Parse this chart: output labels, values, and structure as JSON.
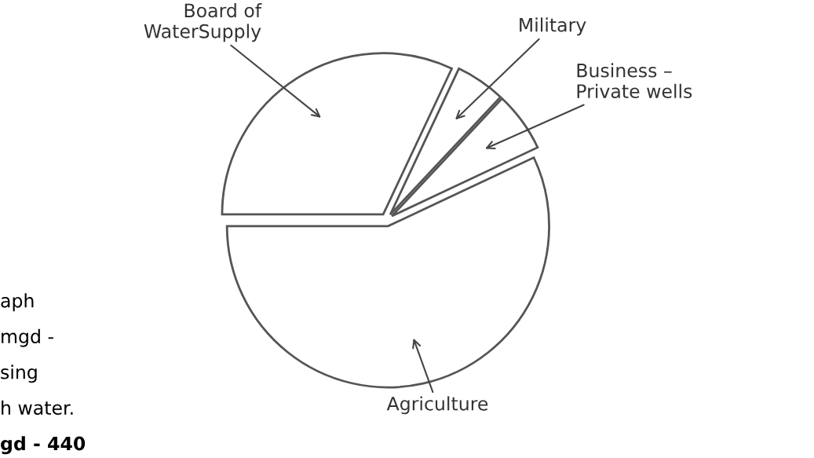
{
  "chart_data": {
    "type": "pie",
    "categories": [
      "Agriculture",
      "Business –\nPrivate wells",
      "Military",
      "Board of\nWaterSupply"
    ],
    "values": [
      57,
      6,
      5,
      32
    ],
    "colors": [
      "#ffffff",
      "#ffffff",
      "#ffffff",
      "#ffffff"
    ],
    "annotations": [
      "aph",
      "mgd -",
      "sing",
      "h water.",
      "gd - 440"
    ]
  }
}
